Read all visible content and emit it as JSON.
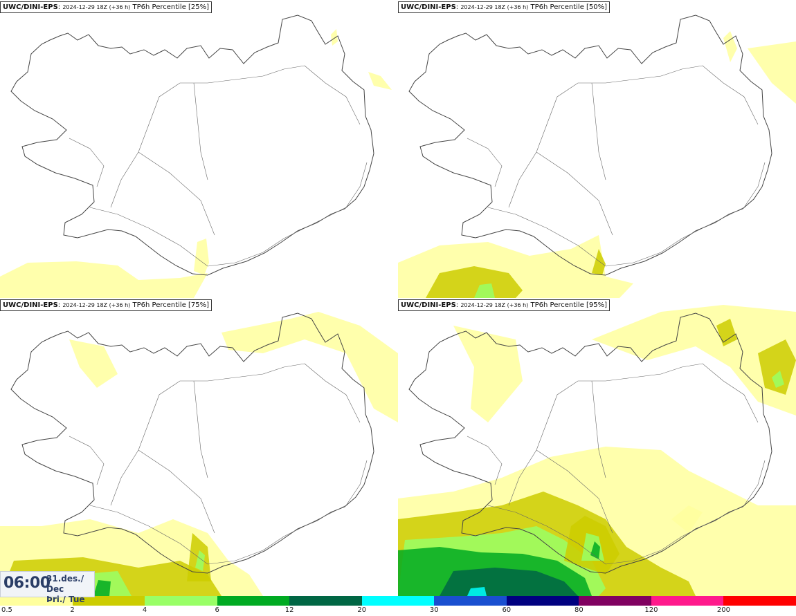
{
  "panels": [
    {
      "source": "UWC/DINI-EPS",
      "run": "2024-12-29 18Z (+36 h)",
      "product": "TP6h Percentile [25%]",
      "level": 0
    },
    {
      "source": "UWC/DINI-EPS",
      "run": "2024-12-29 18Z (+36 h)",
      "product": "TP6h Percentile [50%]",
      "level": 1
    },
    {
      "source": "UWC/DINI-EPS",
      "run": "2024-12-29 18Z (+36 h)",
      "product": "TP6h Percentile [75%]",
      "level": 2
    },
    {
      "source": "UWC/DINI-EPS",
      "run": "2024-12-29 18Z (+36 h)",
      "product": "TP6h Percentile [95%]",
      "level": 3
    }
  ],
  "valid_time": {
    "time": "06:00",
    "date_line1": "31.des./ Dec",
    "date_line2": "Þri./ Tue"
  },
  "colorbar": {
    "ticks": [
      "0.5",
      "2",
      "4",
      "6",
      "12",
      "20",
      "30",
      "60",
      "80",
      "120",
      "200"
    ],
    "colors": [
      "#ffff9e",
      "#cccc00",
      "#99ff66",
      "#00aa22",
      "#006644",
      "#00ffff",
      "#1a4fd0",
      "#000080",
      "#800060",
      "#ff1a8c",
      "#ff0000"
    ]
  }
}
